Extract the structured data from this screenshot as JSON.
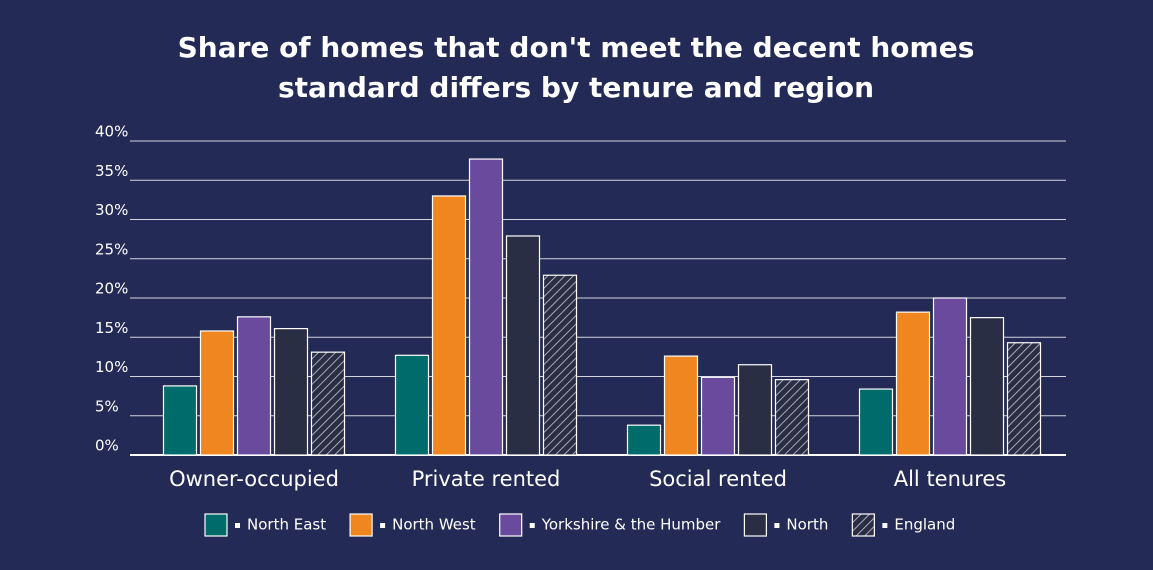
{
  "chart_data": {
    "type": "bar",
    "title": "Share of homes that don't meet the decent homes standard differs by tenure and region",
    "categories": [
      "Owner-occupied",
      "Private rented",
      "Social rented",
      "All tenures"
    ],
    "series": [
      {
        "name": "North East",
        "color": "#006b6b",
        "values": [
          8.8,
          12.7,
          3.8,
          8.4
        ]
      },
      {
        "name": "North West",
        "color": "#f0861f",
        "values": [
          15.8,
          33.0,
          12.6,
          18.2
        ]
      },
      {
        "name": "Yorkshire & the Humber",
        "color": "#6a4a9c",
        "values": [
          17.6,
          37.7,
          9.9,
          20.0
        ]
      },
      {
        "name": "North",
        "color": "#2a2e45",
        "values": [
          16.1,
          27.9,
          11.5,
          17.5
        ]
      },
      {
        "name": "England",
        "color": "#2a2e45",
        "hatch": true,
        "values": [
          13.1,
          22.9,
          9.6,
          14.3
        ]
      }
    ],
    "ylim": [
      0,
      40
    ],
    "yticks": [
      {
        "value": 0,
        "label": "0%"
      },
      {
        "value": 5,
        "label": "5%"
      },
      {
        "value": 10,
        "label": "10%"
      },
      {
        "value": 15,
        "label": "15%"
      },
      {
        "value": 20,
        "label": "20%"
      },
      {
        "value": 25,
        "label": "25%"
      },
      {
        "value": 30,
        "label": "30%"
      },
      {
        "value": 35,
        "label": "35%"
      },
      {
        "value": 40,
        "label": "40%"
      }
    ],
    "grid": true
  }
}
